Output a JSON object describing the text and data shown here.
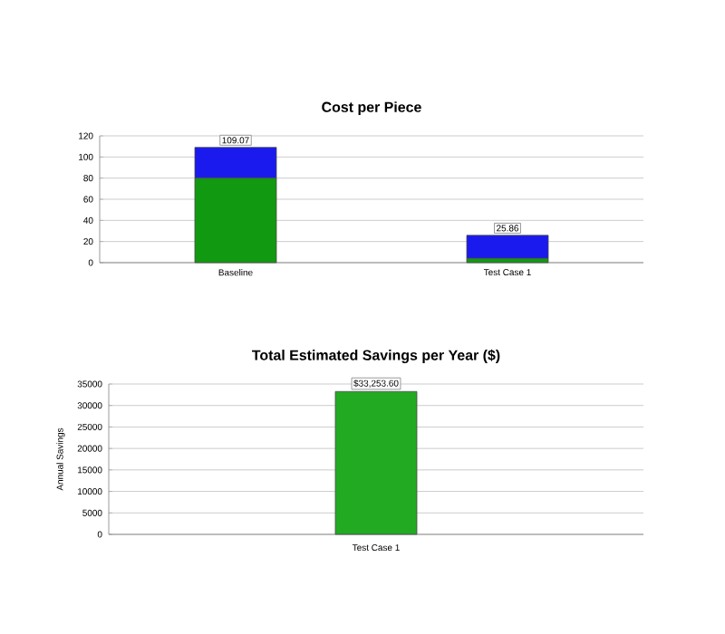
{
  "chart_data": [
    {
      "type": "bar",
      "title": "Cost per Piece",
      "categories": [
        "Baseline",
        "Test Case 1"
      ],
      "stacked": true,
      "series": [
        {
          "color": "#119911",
          "values": [
            80,
            4
          ]
        },
        {
          "color": "#1a1aee",
          "values": [
            29.07,
            21.86
          ]
        }
      ],
      "totals": [
        "109.07",
        "25.86"
      ],
      "ylim": [
        0,
        120
      ],
      "yticks": [
        0,
        20,
        40,
        60,
        80,
        100,
        120
      ],
      "grid": "y"
    },
    {
      "type": "bar",
      "title": "Total Estimated Savings per Year ($)",
      "ylabel": "Annual Savings",
      "categories": [
        "Test Case 1"
      ],
      "values": [
        33253.6
      ],
      "value_labels": [
        "$33,253.60"
      ],
      "color": "#22aa22",
      "ylim": [
        0,
        35000
      ],
      "yticks": [
        0,
        5000,
        10000,
        15000,
        20000,
        25000,
        30000,
        35000
      ],
      "grid": "y"
    }
  ]
}
